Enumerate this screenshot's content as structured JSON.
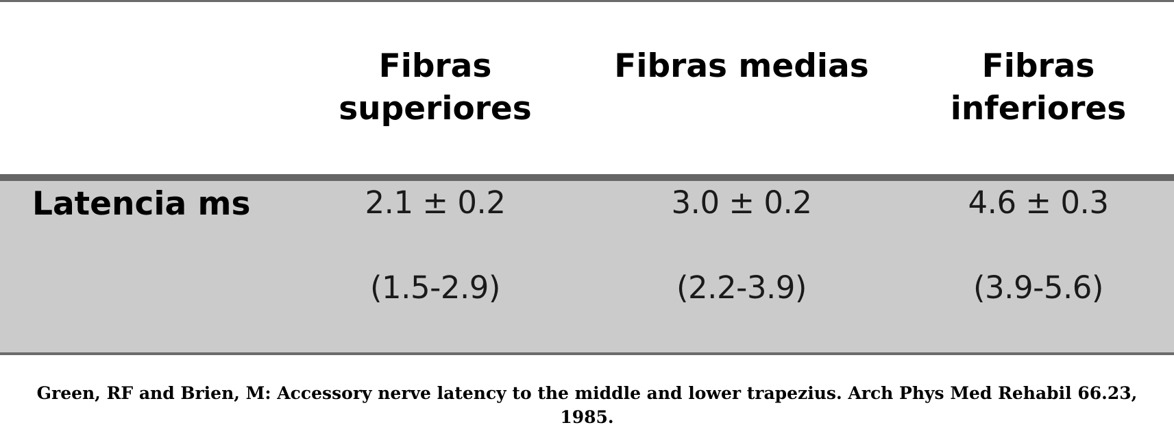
{
  "table": {
    "columns": [
      "Fibras\nsuperiores",
      "Fibras medias",
      "Fibras\ninferiores"
    ],
    "row_label": "Latencia ms",
    "means": [
      "2.1 ± 0.2",
      "3.0 ± 0.2",
      "4.6 ± 0.3"
    ],
    "ranges": [
      "(1.5-2.9)",
      "(2.2-3.9)",
      "(3.9-5.6)"
    ]
  },
  "citation": {
    "line1": "Green, RF and Brien, M: Accessory nerve latency to the middle and lower trapezius. Arch Phys Med Rehabil 66.23,",
    "line2": "1985."
  }
}
